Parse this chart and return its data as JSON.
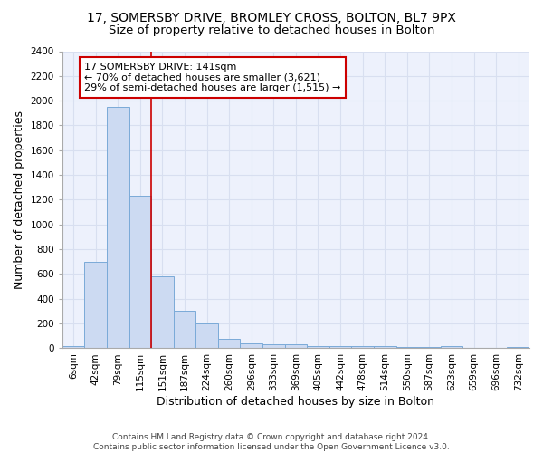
{
  "title_line1": "17, SOMERSBY DRIVE, BROMLEY CROSS, BOLTON, BL7 9PX",
  "title_line2": "Size of property relative to detached houses in Bolton",
  "xlabel": "Distribution of detached houses by size in Bolton",
  "ylabel": "Number of detached properties",
  "categories": [
    "6sqm",
    "42sqm",
    "79sqm",
    "115sqm",
    "151sqm",
    "187sqm",
    "224sqm",
    "260sqm",
    "296sqm",
    "333sqm",
    "369sqm",
    "405sqm",
    "442sqm",
    "478sqm",
    "514sqm",
    "550sqm",
    "587sqm",
    "623sqm",
    "659sqm",
    "696sqm",
    "732sqm"
  ],
  "bar_heights": [
    20,
    700,
    1950,
    1230,
    580,
    305,
    200,
    80,
    40,
    30,
    30,
    20,
    15,
    20,
    15,
    10,
    10,
    20,
    5,
    5,
    10
  ],
  "bar_color": "#ccdaf2",
  "bar_edge_color": "#7aaad8",
  "red_line_index": 4,
  "annotation_title": "17 SOMERSBY DRIVE: 141sqm",
  "annotation_line1": "← 70% of detached houses are smaller (3,621)",
  "annotation_line2": "29% of semi-detached houses are larger (1,515) →",
  "annotation_box_facecolor": "#ffffff",
  "annotation_box_edgecolor": "#cc0000",
  "red_line_color": "#cc0000",
  "ylim": [
    0,
    2400
  ],
  "yticks": [
    0,
    200,
    400,
    600,
    800,
    1000,
    1200,
    1400,
    1600,
    1800,
    2000,
    2200,
    2400
  ],
  "bg_color": "#edf1fc",
  "grid_color": "#d8dff0",
  "title_fontsize": 10,
  "subtitle_fontsize": 9.5,
  "axis_label_fontsize": 9,
  "tick_fontsize": 7.5,
  "annotation_fontsize": 8,
  "footer": "Contains HM Land Registry data © Crown copyright and database right 2024.\nContains public sector information licensed under the Open Government Licence v3.0.",
  "footer_fontsize": 6.5
}
